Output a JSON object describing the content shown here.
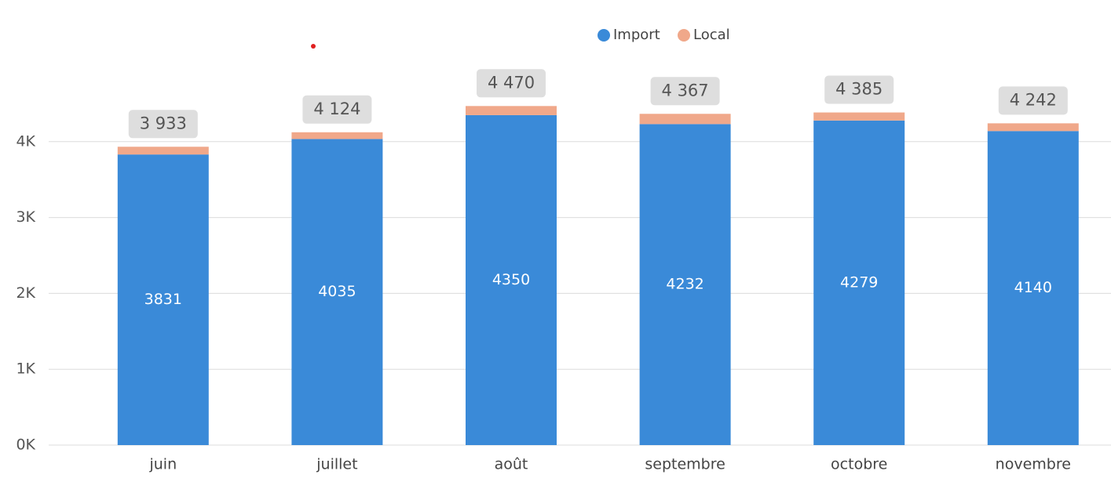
{
  "chart_data": {
    "type": "stacked_bar",
    "categories": [
      "juin",
      "juillet",
      "août",
      "septembre",
      "octobre",
      "novembre"
    ],
    "series": [
      {
        "name": "Import",
        "color": "#3a8ad8",
        "values": [
          3831,
          4035,
          4350,
          4232,
          4279,
          4140
        ]
      },
      {
        "name": "Local",
        "color": "#f0a88a",
        "values": [
          102,
          89,
          120,
          135,
          106,
          102
        ]
      }
    ],
    "totals": {
      "values": [
        3933,
        4124,
        4470,
        4367,
        4385,
        4242
      ],
      "value_labels": [
        "3 933",
        "4 124",
        "4 470",
        "4 367",
        "4 385",
        "4 242"
      ]
    },
    "ylim": [
      0,
      5000
    ],
    "yticks": [
      {
        "value": 0,
        "label": "0K"
      },
      {
        "value": 1000,
        "label": "1K"
      },
      {
        "value": 2000,
        "label": "2K"
      },
      {
        "value": 3000,
        "label": "3K"
      },
      {
        "value": 4000,
        "label": "4K"
      }
    ],
    "grid": true,
    "legend": "top"
  }
}
